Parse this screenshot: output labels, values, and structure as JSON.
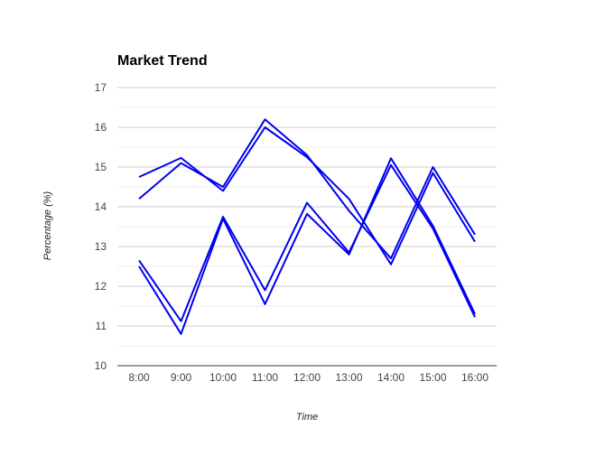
{
  "chart_data": {
    "type": "line",
    "title": "Market Trend",
    "xlabel": "Time",
    "ylabel": "Percentage (%)",
    "categories": [
      "8:00",
      "9:00",
      "10:00",
      "11:00",
      "12:00",
      "13:00",
      "14:00",
      "15:00",
      "16:00"
    ],
    "yticks": [
      10,
      11,
      12,
      13,
      14,
      15,
      16,
      17
    ],
    "ylim": [
      10,
      17
    ],
    "minor_gridlines": true,
    "legend": "none",
    "series_color": "#0000ee",
    "series": [
      {
        "values": [
          14.2,
          15.1,
          14.5,
          16.2,
          15.3,
          13.9,
          12.7,
          15.0,
          13.3
        ]
      },
      {
        "values": [
          14.75,
          15.23,
          14.4,
          16.0,
          15.25,
          14.2,
          12.55,
          14.85,
          13.12
        ]
      },
      {
        "values": [
          12.65,
          11.12,
          13.75,
          11.9,
          14.1,
          12.85,
          15.05,
          13.45,
          11.22
        ]
      },
      {
        "values": [
          12.5,
          10.8,
          13.7,
          11.55,
          13.82,
          12.8,
          15.22,
          13.52,
          11.3
        ]
      }
    ]
  }
}
